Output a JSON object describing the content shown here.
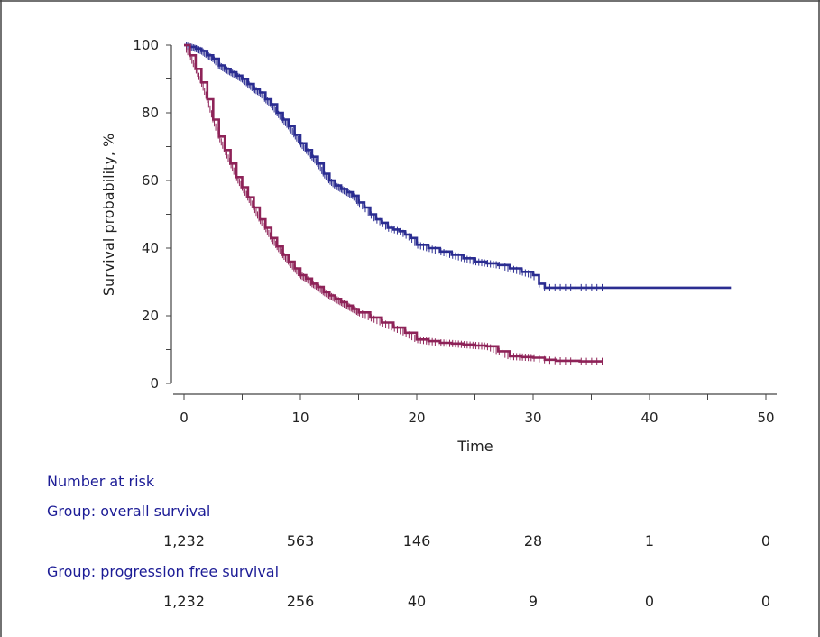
{
  "chart_data": {
    "type": "line",
    "ylabel": "Survival probability, %",
    "xlabel": "Time",
    "xlim": [
      0,
      50
    ],
    "ylim": [
      0,
      100
    ],
    "x_ticks": [
      0,
      10,
      20,
      30,
      40,
      50
    ],
    "y_ticks": [
      0,
      20,
      40,
      60,
      80,
      100
    ],
    "grid": false,
    "colors": {
      "overall": "#2b2d91",
      "pfs": "#8e2358"
    },
    "series": [
      {
        "key": "overall",
        "color": "#2b2d91",
        "x": [
          0,
          0.5,
          1,
          1.5,
          2,
          2.5,
          3,
          3.5,
          4,
          4.5,
          5,
          5.5,
          6,
          6.5,
          7,
          7.5,
          8,
          8.5,
          9,
          9.5,
          10,
          10.5,
          11,
          11.5,
          12,
          12.5,
          13,
          13.5,
          14,
          14.5,
          15,
          15.5,
          16,
          16.5,
          17,
          17.5,
          18,
          18.5,
          19,
          19.5,
          20,
          21,
          22,
          23,
          24,
          25,
          26,
          27,
          28,
          29,
          30,
          30.5,
          31,
          32,
          35,
          40,
          45,
          47
        ],
        "y": [
          100,
          99.5,
          99,
          98.3,
          97,
          96,
          94,
          93,
          92,
          91,
          90,
          88.5,
          87,
          86,
          84,
          82.5,
          80,
          78,
          76,
          73.5,
          71,
          69,
          67,
          65,
          62,
          60,
          58.5,
          57.5,
          56.5,
          55.5,
          53.5,
          52,
          50,
          48.5,
          47.5,
          46,
          45.5,
          45,
          44,
          43,
          41,
          40,
          39,
          38,
          37,
          36,
          35.5,
          35,
          34,
          33,
          32,
          29.5,
          28.3,
          28.3,
          28.3,
          28.3,
          28.3,
          28.3
        ]
      },
      {
        "key": "pfs",
        "color": "#8e2358",
        "x": [
          0,
          0.5,
          1,
          1.5,
          2,
          2.5,
          3,
          3.5,
          4,
          4.5,
          5,
          5.5,
          6,
          6.5,
          7,
          7.5,
          8,
          8.5,
          9,
          9.5,
          10,
          10.5,
          11,
          11.5,
          12,
          12.5,
          13,
          13.5,
          14,
          14.5,
          15,
          16,
          17,
          18,
          19,
          20,
          21,
          22,
          23,
          24,
          25,
          26,
          27,
          28,
          29,
          30,
          31,
          32,
          34,
          36
        ],
        "y": [
          100,
          97,
          93,
          89,
          84,
          78,
          73,
          69,
          65,
          61,
          58,
          55,
          52,
          48.5,
          46,
          43,
          40.5,
          38,
          36,
          34,
          32,
          31,
          29.5,
          28.5,
          27,
          26,
          25,
          24,
          23,
          22,
          21,
          19.5,
          18,
          16.5,
          15,
          13,
          12.5,
          12,
          11.8,
          11.5,
          11.2,
          11,
          9.5,
          8,
          7.8,
          7.6,
          7,
          6.7,
          6.5,
          6.5
        ]
      }
    ]
  },
  "risk_table": {
    "title": "Number at risk",
    "groups": [
      {
        "label": "Group: overall survival",
        "values": [
          "1,232",
          "563",
          "146",
          "28",
          "1",
          "0"
        ]
      },
      {
        "label": "Group: progression free survival",
        "values": [
          "1,232",
          "256",
          "40",
          "9",
          "0",
          "0"
        ]
      }
    ]
  }
}
